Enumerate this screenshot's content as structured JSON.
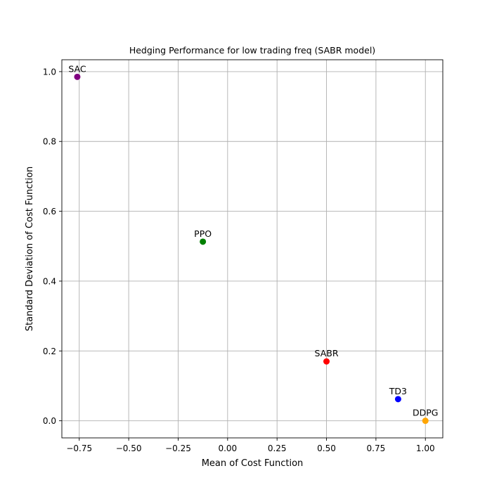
{
  "chart_data": {
    "type": "scatter",
    "title": "Hedging Performance for low trading freq (SABR model)",
    "xlabel": "Mean of Cost Function",
    "ylabel": "Standard Deviation of Cost Function",
    "xlim": [
      -0.838,
      1.088
    ],
    "ylim": [
      -0.049,
      1.034
    ],
    "xticks": [
      -0.75,
      -0.5,
      -0.25,
      0.0,
      0.25,
      0.5,
      0.75,
      1.0
    ],
    "xtick_labels": [
      "−0.75",
      "−0.50",
      "−0.25",
      "0.00",
      "0.25",
      "0.50",
      "0.75",
      "1.00"
    ],
    "yticks": [
      0.0,
      0.2,
      0.4,
      0.6,
      0.8,
      1.0
    ],
    "ytick_labels": [
      "0.0",
      "0.2",
      "0.4",
      "0.6",
      "0.8",
      "1.0"
    ],
    "grid": true,
    "points": [
      {
        "label": "SAC",
        "x": -0.76,
        "y": 0.985,
        "color": "#800080"
      },
      {
        "label": "PPO",
        "x": -0.125,
        "y": 0.513,
        "color": "#008000"
      },
      {
        "label": "SABR",
        "x": 0.5,
        "y": 0.17,
        "color": "#ff0000"
      },
      {
        "label": "TD3",
        "x": 0.862,
        "y": 0.062,
        "color": "#0000ff"
      },
      {
        "label": "DDPG",
        "x": 1.0,
        "y": 0.0,
        "color": "#ffa500"
      }
    ]
  }
}
